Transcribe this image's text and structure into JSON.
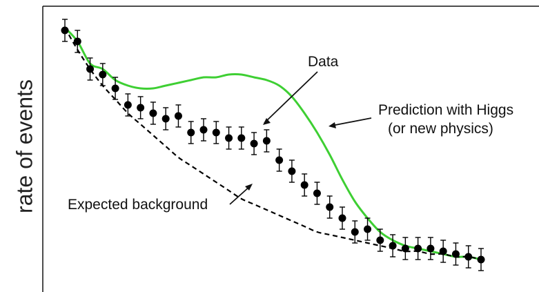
{
  "chart_data": {
    "type": "scatter",
    "title": "",
    "xlabel": "",
    "ylabel": "rate of events",
    "grid": false,
    "colors": {
      "data": "#000000",
      "prediction": "#3ecf33",
      "background": "#000000"
    },
    "series": [
      {
        "name": "Data",
        "style": "points-with-error-bars",
        "x": [
          0,
          1,
          2,
          3,
          4,
          5,
          6,
          7,
          8,
          9,
          10,
          11,
          12,
          13,
          14,
          15,
          16,
          17,
          18,
          19,
          20,
          21,
          22,
          23,
          24,
          25,
          26,
          27,
          28,
          29,
          30,
          31,
          32,
          33
        ],
        "y": [
          0.92,
          0.88,
          0.78,
          0.76,
          0.71,
          0.65,
          0.64,
          0.62,
          0.6,
          0.61,
          0.55,
          0.56,
          0.55,
          0.53,
          0.53,
          0.51,
          0.52,
          0.45,
          0.41,
          0.36,
          0.33,
          0.28,
          0.24,
          0.19,
          0.2,
          0.16,
          0.14,
          0.13,
          0.13,
          0.13,
          0.12,
          0.11,
          0.1,
          0.09
        ],
        "err": [
          0.04,
          0.04,
          0.04,
          0.04,
          0.04,
          0.04,
          0.04,
          0.04,
          0.04,
          0.04,
          0.04,
          0.04,
          0.04,
          0.04,
          0.04,
          0.04,
          0.04,
          0.04,
          0.04,
          0.04,
          0.04,
          0.04,
          0.04,
          0.04,
          0.04,
          0.04,
          0.04,
          0.04,
          0.04,
          0.04,
          0.04,
          0.04,
          0.04,
          0.04
        ]
      },
      {
        "name": "Prediction with Higgs",
        "style": "solid-line",
        "x": [
          0,
          1,
          2,
          3,
          4,
          5,
          6,
          7,
          8,
          9,
          10,
          11,
          12,
          13,
          14,
          15,
          16,
          17,
          18,
          19,
          20,
          21,
          22,
          23,
          24,
          25,
          26,
          27,
          28,
          29,
          30,
          31,
          32,
          33
        ],
        "y": [
          0.93,
          0.88,
          0.8,
          0.78,
          0.74,
          0.72,
          0.71,
          0.71,
          0.72,
          0.73,
          0.74,
          0.75,
          0.75,
          0.76,
          0.76,
          0.75,
          0.74,
          0.72,
          0.68,
          0.62,
          0.55,
          0.47,
          0.38,
          0.3,
          0.24,
          0.19,
          0.16,
          0.14,
          0.13,
          0.12,
          0.11,
          0.1,
          0.1,
          0.09
        ]
      },
      {
        "name": "Expected background",
        "style": "dashed-line",
        "x": [
          0,
          1,
          2,
          3,
          4,
          5,
          6,
          7,
          8,
          9,
          10,
          11,
          12,
          13,
          14,
          15,
          16,
          17,
          18,
          19,
          20,
          21,
          22,
          23,
          24,
          25,
          26,
          27,
          28,
          29,
          30,
          31,
          32,
          33
        ],
        "y": [
          0.93,
          0.85,
          0.78,
          0.72,
          0.67,
          0.62,
          0.58,
          0.54,
          0.5,
          0.46,
          0.43,
          0.4,
          0.37,
          0.34,
          0.31,
          0.29,
          0.27,
          0.25,
          0.23,
          0.21,
          0.19,
          0.18,
          0.17,
          0.16,
          0.15,
          0.14,
          0.13,
          0.12,
          0.12,
          0.11,
          0.11,
          0.1,
          0.1,
          0.09
        ]
      }
    ],
    "annotations": [
      {
        "text": "Data",
        "points_to": "Data"
      },
      {
        "text": "Prediction with Higgs",
        "points_to": "Prediction with Higgs"
      },
      {
        "text": "(or new physics)",
        "points_to": "Prediction with Higgs"
      },
      {
        "text": "Expected background",
        "points_to": "Expected background"
      }
    ]
  }
}
